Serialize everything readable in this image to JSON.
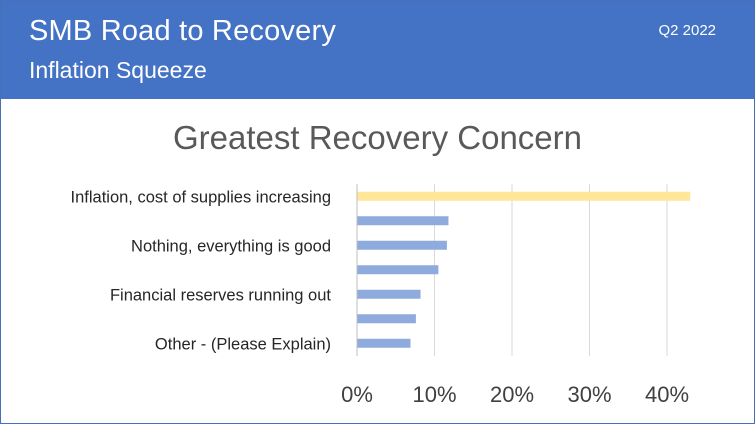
{
  "header": {
    "title": "SMB Road to Recovery",
    "subtitle": "Inflation Squeeze",
    "period": "Q2 2022",
    "background_color": "#4472c4"
  },
  "chart_data": {
    "type": "bar",
    "orientation": "horizontal",
    "title": "Greatest Recovery Concern",
    "categories": [
      "Inflation, cost of supplies increasing",
      "",
      "Nothing, everything is good",
      "",
      "Financial reserves running out",
      "",
      "Other - (Please Explain)"
    ],
    "values": [
      0.43,
      0.118,
      0.116,
      0.105,
      0.082,
      0.076,
      0.069
    ],
    "highlight_index": 0,
    "highlight_color": "#ffe699",
    "bar_color": "#8faadc",
    "xlim": [
      0,
      0.4
    ],
    "xticks": [
      0,
      0.1,
      0.2,
      0.3,
      0.4
    ],
    "xtick_labels": [
      "0%",
      "10%",
      "20%",
      "30%",
      "40%"
    ],
    "xlabel": "",
    "ylabel": "",
    "grid": "vertical"
  }
}
